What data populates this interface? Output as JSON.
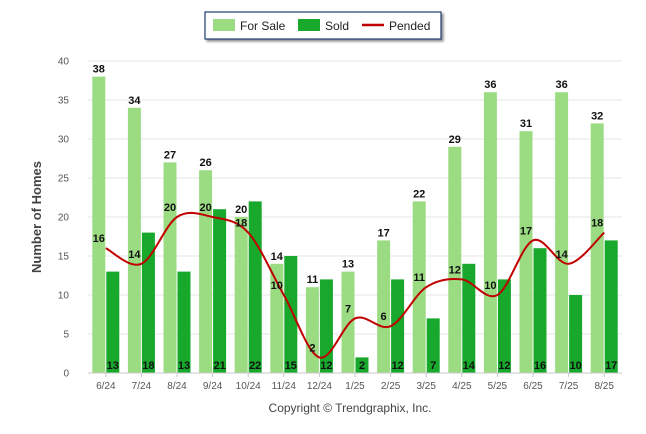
{
  "chart_data": {
    "type": "bar",
    "categories": [
      "6/24",
      "7/24",
      "8/24",
      "9/24",
      "10/24",
      "11/24",
      "12/24",
      "1/25",
      "2/25",
      "3/25",
      "4/25",
      "5/25",
      "6/25",
      "7/25",
      "8/25"
    ],
    "series": [
      {
        "name": "For Sale",
        "type": "bar",
        "color": "#9bdc83",
        "values": [
          38,
          34,
          27,
          26,
          20,
          14,
          11,
          13,
          17,
          22,
          29,
          36,
          31,
          36,
          32
        ]
      },
      {
        "name": "Sold",
        "type": "bar",
        "color": "#18a82c",
        "values": [
          13,
          18,
          13,
          21,
          22,
          15,
          12,
          2,
          12,
          7,
          14,
          12,
          16,
          10,
          17
        ]
      },
      {
        "name": "Pended",
        "type": "line",
        "color": "#c00000",
        "values": [
          16,
          14,
          20,
          20,
          18,
          10,
          2,
          7,
          6,
          11,
          12,
          10,
          17,
          14,
          18
        ]
      }
    ],
    "ylabel": "Number of Homes",
    "xlabel": "",
    "ylim": [
      0,
      40
    ],
    "yticks": [
      0,
      5,
      10,
      15,
      20,
      25,
      30,
      35,
      40
    ],
    "grid": true,
    "legend": "top-center",
    "footer": "Copyright © Trendgraphix, Inc."
  }
}
